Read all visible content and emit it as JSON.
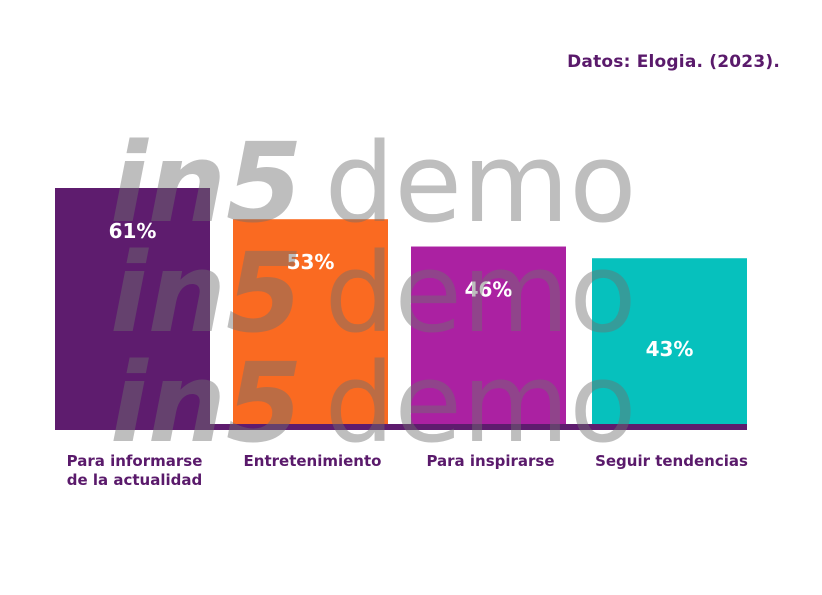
{
  "source_note": "Datos: Elogia. (2023).",
  "watermark": {
    "part_a": "in5",
    "part_b": "demo"
  },
  "chart_data": {
    "type": "bar",
    "categories": [
      "Para informarse\nde la actualidad",
      "Entretenimiento",
      "Para inspirarse",
      "Seguir tendencias"
    ],
    "values": [
      61,
      53,
      46,
      43
    ],
    "value_labels": [
      "61%",
      "53%",
      "46%",
      "43%"
    ],
    "colors": [
      "#5e1c6e",
      "#fa6a21",
      "#ab21a2",
      "#06c1bd"
    ],
    "baseline_color": "#5e1c6e",
    "title": "",
    "xlabel": "",
    "ylabel": "",
    "ylim": [
      0,
      61
    ],
    "grid": false
  }
}
